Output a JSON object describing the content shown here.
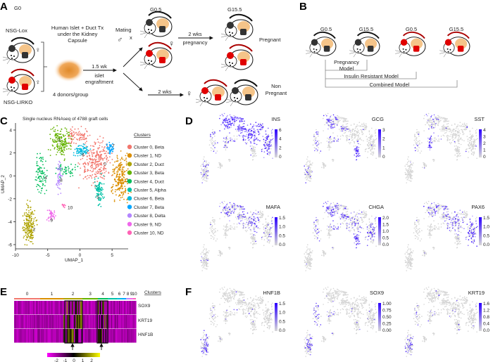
{
  "panels": {
    "A": {
      "label": "A",
      "g0": "G0",
      "nsg_lox": "NSG-Lox",
      "nsg_lirko": "NSG-LIRKO",
      "tx_line1": "Human Islet + Duct Tx",
      "tx_line2": "under the Kidney",
      "tx_line3": "Capsule",
      "donors": "4 donors/group",
      "engraft_1": "1.5 wk",
      "engraft_2": "islet",
      "engraft_3": "engraftment",
      "mating": "Mating",
      "male": "♂",
      "x": "x",
      "female": "♀",
      "g05": "G0.5",
      "g155": "G15.5",
      "preg_arrow_1": "2 wks",
      "preg_arrow_2": "pregnancy",
      "pregnant": "Pregnant",
      "nonpreg_arrow": "2 wks",
      "non_1": "Non",
      "non_2": "Pregnant"
    },
    "B": {
      "label": "B",
      "timepoints": [
        "G0.5",
        "G15.5",
        "G0.5",
        "G15.5"
      ],
      "preg_model_1": "Pregnancy",
      "preg_model_2": "Model",
      "ir_model": "Insulin Resistant Model",
      "combined_model": "Combined Model"
    },
    "C": {
      "label": "C",
      "title": "Single nucleus RNAseq of 4788 graft cells",
      "xlabel": "UMAP_1",
      "ylabel": "UMAP_2",
      "xticks": [
        "-10",
        "-5",
        "0",
        "5"
      ],
      "yticks": [
        "4",
        "2",
        "0",
        "-2",
        "-4",
        "-6"
      ],
      "legend_title": "Clusters",
      "clusters": [
        {
          "id": "0",
          "label": "Cluster 0, Beta",
          "color": "#f2766d"
        },
        {
          "id": "1",
          "label": "Cluster 1, ND",
          "color": "#db8e00"
        },
        {
          "id": "2",
          "label": "Cluster 2, Duct",
          "color": "#aea200"
        },
        {
          "id": "3",
          "label": "Cluster 3, Beta",
          "color": "#64b200"
        },
        {
          "id": "4",
          "label": "Cluster 4, Duct",
          "color": "#00bd5c"
        },
        {
          "id": "5",
          "label": "Cluster 5, Alpha",
          "color": "#00c1a7"
        },
        {
          "id": "6",
          "label": "Cluster 6, Beta",
          "color": "#00bade"
        },
        {
          "id": "7",
          "label": "Cluster 7, Beta",
          "color": "#00a6ff"
        },
        {
          "id": "8",
          "label": "Cluster 8, Delta",
          "color": "#b385ff"
        },
        {
          "id": "9",
          "label": "Cluster 9, ND",
          "color": "#ef67eb"
        },
        {
          "id": "10",
          "label": "Cluster 10, ND",
          "color": "#ff63b6"
        }
      ]
    },
    "D": {
      "label": "D",
      "features": [
        {
          "gene": "INS",
          "scale": [
            "6",
            "4",
            "2",
            "0"
          ]
        },
        {
          "gene": "GCG",
          "scale": [
            "3",
            "2",
            "1",
            "0"
          ]
        },
        {
          "gene": "SST",
          "scale": [
            "4",
            "3",
            "2",
            "1",
            "0"
          ]
        },
        {
          "gene": "MAFA",
          "scale": [
            "1.5",
            "1.0",
            "0.5",
            "0.0"
          ]
        },
        {
          "gene": "CHGA",
          "scale": [
            "2.0",
            "1.5",
            "1.0",
            "0.5",
            "0.0"
          ]
        },
        {
          "gene": "PAX6",
          "scale": [
            "1.5",
            "1.0",
            "0.5",
            "0.0"
          ]
        }
      ]
    },
    "E": {
      "label": "E",
      "cluster_labels": [
        "0",
        "1",
        "2",
        "3",
        "4",
        "5",
        "6",
        "7",
        "8",
        "9",
        "10"
      ],
      "clusters_title": "Clusters",
      "rows": [
        "SOX9",
        "KRT19",
        "HNF1B"
      ],
      "scale_ticks": [
        "-2",
        "-1",
        "0",
        "1",
        "2"
      ],
      "scale_colors": [
        "#ff00ff",
        "#000000",
        "#ffff00"
      ],
      "highlighted_clusters": [
        "2",
        "4"
      ]
    },
    "F": {
      "label": "F",
      "features": [
        {
          "gene": "HNF1B",
          "scale": [
            "1.5",
            "1.0",
            "0.5",
            "0.0"
          ]
        },
        {
          "gene": "SOX9",
          "scale": [
            "1.00",
            "0.75",
            "0.50",
            "0.25",
            "0.00"
          ]
        },
        {
          "gene": "KRT19",
          "scale": [
            "1.6",
            "1.2",
            "0.8",
            "0.4",
            "0.0"
          ]
        }
      ]
    }
  },
  "colors": {
    "expression_low": "#d9d9d9",
    "expression_high": "#2b00ff"
  }
}
